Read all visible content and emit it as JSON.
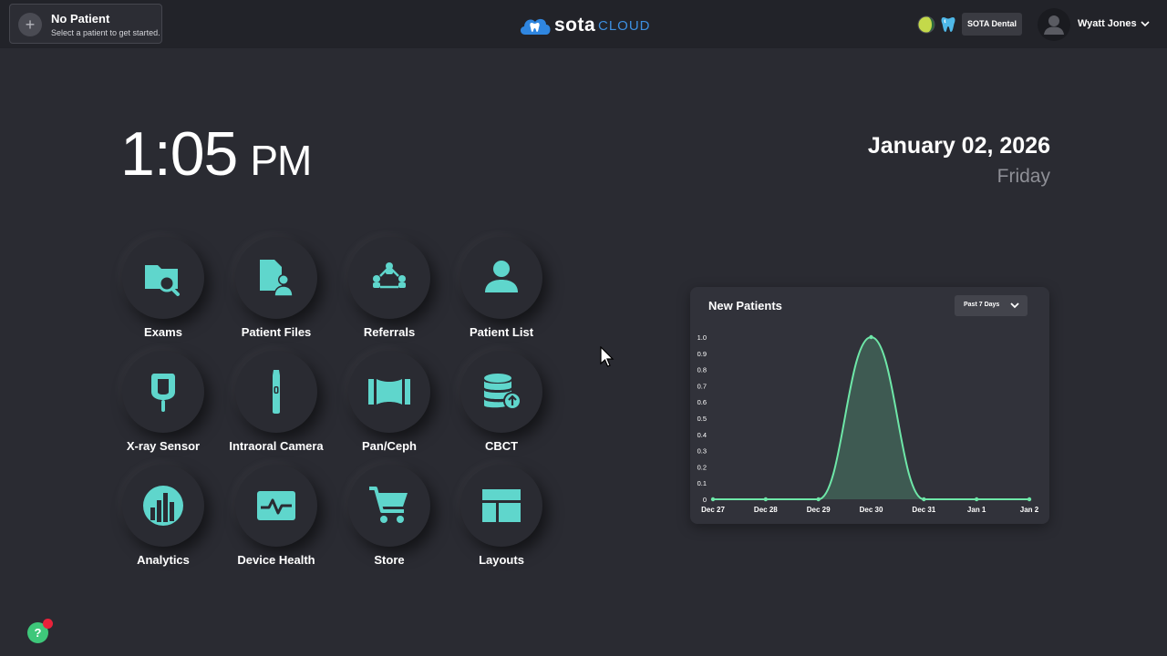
{
  "header": {
    "patient_title": "No Patient",
    "patient_subtitle": "Select a patient to get started.",
    "logo_sota": "sota",
    "logo_cloud": "CLOUD",
    "practice": "SOTA Dental",
    "user_name": "Wyatt Jones"
  },
  "clock": {
    "time": "1:05",
    "ampm": "PM",
    "date": "January 02, 2026",
    "weekday": "Friday"
  },
  "tiles": [
    {
      "label": "Exams",
      "icon": "folder-search-icon"
    },
    {
      "label": "Patient Files",
      "icon": "patient-file-icon"
    },
    {
      "label": "Referrals",
      "icon": "referrals-icon"
    },
    {
      "label": "Patient List",
      "icon": "person-icon"
    },
    {
      "label": "X-ray Sensor",
      "icon": "xray-sensor-icon"
    },
    {
      "label": "Intraoral Camera",
      "icon": "intraoral-camera-icon"
    },
    {
      "label": "Pan/Ceph",
      "icon": "pan-ceph-icon"
    },
    {
      "label": "CBCT",
      "icon": "database-upload-icon"
    },
    {
      "label": "Analytics",
      "icon": "analytics-icon"
    },
    {
      "label": "Device Health",
      "icon": "device-health-icon"
    },
    {
      "label": "Store",
      "icon": "cart-icon"
    },
    {
      "label": "Layouts",
      "icon": "layouts-icon"
    }
  ],
  "chart_panel": {
    "title": "New Patients",
    "range": "Past 7 Days"
  },
  "chart_data": {
    "type": "area",
    "title": "New Patients",
    "x": [
      "Dec 27",
      "Dec 28",
      "Dec 29",
      "Dec 30",
      "Dec 31",
      "Jan 1",
      "Jan 2"
    ],
    "values": [
      0,
      0,
      0,
      1,
      0,
      0,
      0
    ],
    "yticks": [
      "0",
      "0.1",
      "0.2",
      "0.3",
      "0.4",
      "0.5",
      "0.6",
      "0.7",
      "0.8",
      "0.9",
      "1.0"
    ],
    "ylim": [
      0,
      1
    ],
    "grid": false,
    "line_color": "#6ee7a8"
  },
  "help": {
    "label": "?"
  },
  "colors": {
    "accent": "#5fd6cc",
    "background": "#2a2b32",
    "topbar": "#222329"
  }
}
